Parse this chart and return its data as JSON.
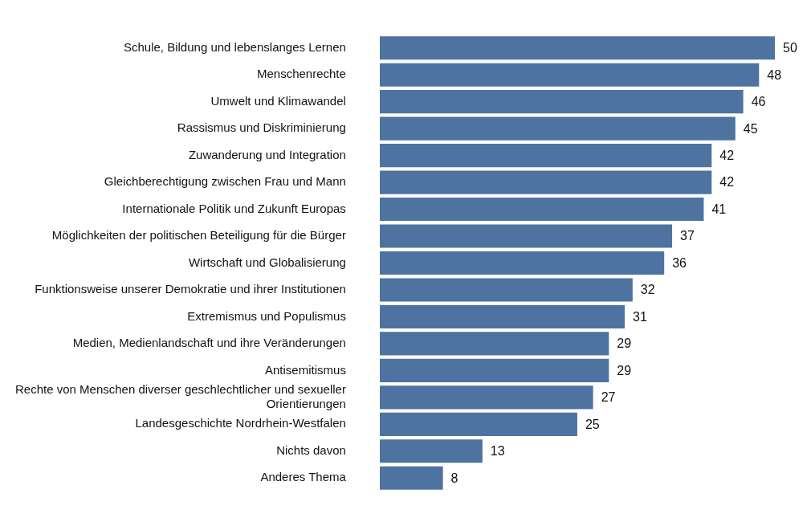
{
  "chart_data": {
    "type": "bar",
    "orientation": "horizontal",
    "categories": [
      "Schule, Bildung und lebenslanges Lernen",
      "Menschenrechte",
      "Umwelt und Klimawandel",
      "Rassismus und Diskriminierung",
      "Zuwanderung und Integration",
      "Gleichberechtigung zwischen Frau und Mann",
      "Internationale Politik und Zukunft Europas",
      "Möglichkeiten der politischen Beteiligung für die Bürger",
      "Wirtschaft und Globalisierung",
      "Funktionsweise unserer Demokratie und ihrer Institutionen",
      "Extremismus und Populismus",
      "Medien, Medienlandschaft und ihre Veränderungen",
      "Antisemitismus",
      "Rechte von Menschen diverser geschlechtlicher und sexueller Orientierungen",
      "Landesgeschichte Nordrhein-Westfalen",
      "Nichts davon",
      "Anderes Thema"
    ],
    "values": [
      50,
      48,
      46,
      45,
      42,
      42,
      41,
      37,
      36,
      32,
      31,
      29,
      29,
      27,
      25,
      13,
      8
    ],
    "color": "#4e73a1",
    "data_labels": true,
    "legend": false
  }
}
